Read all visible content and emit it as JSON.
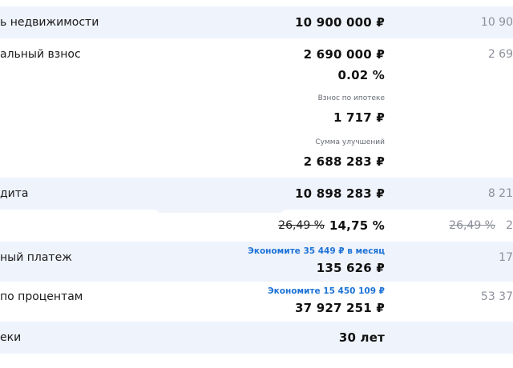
{
  "rows": {
    "property_value": {
      "label": "ь недвижимости",
      "value": "10 900 000 ₽",
      "compare": "10 90"
    },
    "down_payment": {
      "label": "альный взнос",
      "value": "2 690 000 ₽",
      "percent": "0.02 %",
      "mortgage_fee_caption": "Взнос по ипотеке",
      "mortgage_fee_value": "1 717 ₽",
      "improvements_caption": "Сумма улучшений",
      "improvements_value": "2 688 283 ₽",
      "compare": "2 69"
    },
    "credit": {
      "label": "дита",
      "value": "10 898 283 ₽",
      "compare": "8 21"
    },
    "rate": {
      "old_rate": "26,49 %",
      "new_rate": "14,75 %",
      "compare_old": "26,49 %",
      "compare_new": "2"
    },
    "monthly_payment": {
      "label": "ный платеж",
      "savings": "Экономите 35 449 ₽ в месяц",
      "value": "135 626 ₽",
      "compare": "17"
    },
    "interest": {
      "label": "по процентам",
      "savings": "Экономите 15 450 109 ₽",
      "value": "37 927 251 ₽",
      "compare": "53 37"
    },
    "term": {
      "label": "еки",
      "value": "30 лет"
    }
  }
}
